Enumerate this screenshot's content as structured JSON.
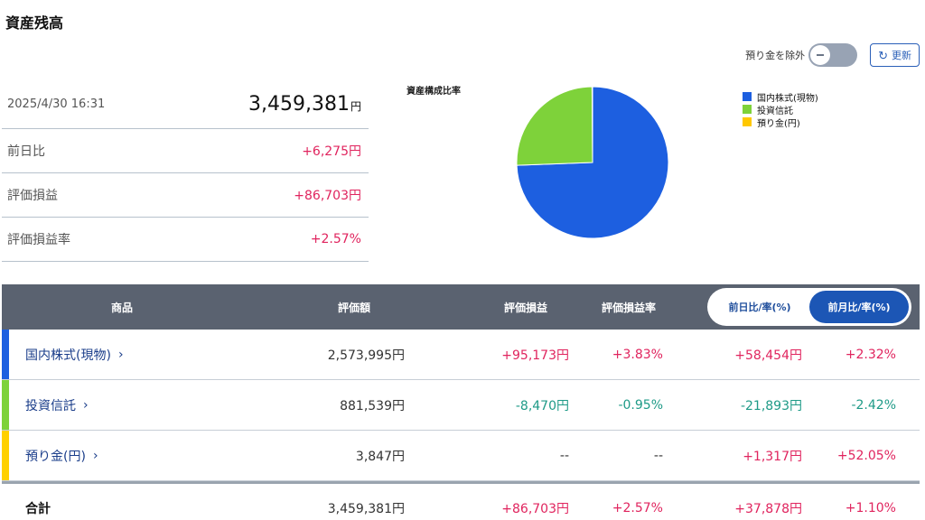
{
  "page": {
    "title": "資産残高"
  },
  "toolbar": {
    "exclude_deposit_label": "預り金を除外",
    "refresh_label": "更新"
  },
  "summary": {
    "datetime": "2025/4/30 16:31",
    "total": "3,459,381",
    "total_unit": "円",
    "rows": [
      {
        "label": "前日比",
        "value": "+6,275円",
        "sign": "pos"
      },
      {
        "label": "評価損益",
        "value": "+86,703円",
        "sign": "pos"
      },
      {
        "label": "評価損益率",
        "value": "+2.57%",
        "sign": "pos"
      }
    ]
  },
  "chart_data": {
    "type": "pie",
    "title": "資産構成比率",
    "legend_position": "top-right",
    "categories": [
      "国内株式(現物)",
      "投資信託",
      "預り金(円)"
    ],
    "values": [
      2573995,
      881539,
      3847
    ],
    "colors": [
      "#1d5fe0",
      "#7ed23a",
      "#ffc800"
    ]
  },
  "table": {
    "headers": {
      "product": "商品",
      "valuation": "評価額",
      "pl": "評価損益",
      "pl_rate": "評価損益率",
      "tab_day": "前日比/率(%)",
      "tab_month": "前月比/率(%)"
    },
    "active_tab": "month",
    "rows": [
      {
        "name": "国内株式(現物)",
        "color": "#1d5fe0",
        "valuation": "2,573,995円",
        "pl": "+95,173円",
        "pl_sign": "pos",
        "rate": "+3.83%",
        "rate_sign": "pos",
        "change": "+58,454円",
        "change_sign": "pos",
        "change_rate": "+2.32%",
        "change_rate_sign": "pos"
      },
      {
        "name": "投資信託",
        "color": "#7ed23a",
        "valuation": "881,539円",
        "pl": "-8,470円",
        "pl_sign": "neg",
        "rate": "-0.95%",
        "rate_sign": "neg",
        "change": "-21,893円",
        "change_sign": "neg",
        "change_rate": "-2.42%",
        "change_rate_sign": "neg"
      },
      {
        "name": "預り金(円)",
        "color": "#ffd000",
        "valuation": "3,847円",
        "pl": "--",
        "pl_sign": "none",
        "rate": "--",
        "rate_sign": "none",
        "change": "+1,317円",
        "change_sign": "pos",
        "change_rate": "+52.05%",
        "change_rate_sign": "pos"
      }
    ],
    "total": {
      "label": "合計",
      "valuation": "3,459,381円",
      "pl": "+86,703円",
      "rate": "+2.57%",
      "change": "+37,878円",
      "change_rate": "+1.10%"
    }
  }
}
